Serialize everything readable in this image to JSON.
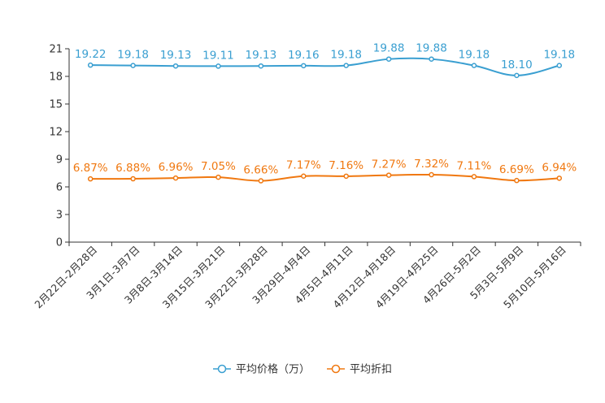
{
  "chart_data": {
    "type": "line",
    "title": "",
    "xlabel": "",
    "ylabel": "",
    "ylim": [
      0,
      21
    ],
    "yticks": [
      0,
      3,
      6,
      9,
      12,
      15,
      18,
      21
    ],
    "categories": [
      "2月22日-2月28日",
      "3月1日-3月7日",
      "3月8日-3月14日",
      "3月15日-3月21日",
      "3月22日-3月28日",
      "3月29日-4月4日",
      "4月5日-4月11日",
      "4月12日-4月18日",
      "4月19日-4月25日",
      "4月26日-5月2日",
      "5月3日-5月9日",
      "5月10日-5月16日"
    ],
    "series": [
      {
        "name": "平均价格（万）",
        "color": "#3a9fd1",
        "values": [
          19.22,
          19.18,
          19.13,
          19.11,
          19.13,
          19.16,
          19.18,
          19.88,
          19.88,
          19.18,
          18.1,
          19.18
        ],
        "labels": [
          "19.22",
          "19.18",
          "19.13",
          "19.11",
          "19.13",
          "19.16",
          "19.18",
          "19.88",
          "19.88",
          "19.18",
          "18.10",
          "19.18"
        ]
      },
      {
        "name": "平均折扣",
        "color": "#f07810",
        "values": [
          6.87,
          6.88,
          6.96,
          7.05,
          6.66,
          7.17,
          7.16,
          7.27,
          7.32,
          7.11,
          6.69,
          6.94
        ],
        "labels": [
          "6.87%",
          "6.88%",
          "6.96%",
          "7.05%",
          "6.66%",
          "7.17%",
          "7.16%",
          "7.27%",
          "7.32%",
          "7.11%",
          "6.69%",
          "6.94%"
        ]
      }
    ],
    "legend": "bottom-center",
    "grid": false
  }
}
